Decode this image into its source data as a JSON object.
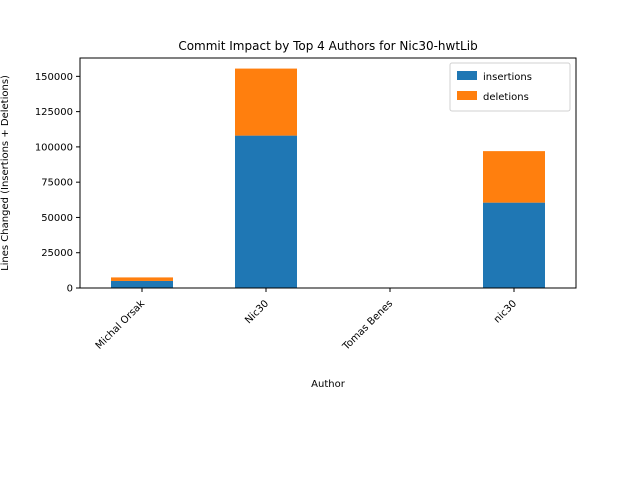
{
  "chart_data": {
    "type": "bar",
    "stacked": true,
    "title": "Commit Impact by Top 4 Authors for Nic30-hwtLib",
    "xlabel": "Author",
    "ylabel": "Lines Changed (Insertions + Deletions)",
    "categories": [
      "Michal Orsak",
      "Nic30",
      "Tomas Benes",
      "nic30"
    ],
    "series": [
      {
        "name": "insertions",
        "color": "#1f77b4",
        "values": [
          5000,
          108000,
          0,
          60500
        ]
      },
      {
        "name": "deletions",
        "color": "#ff7f0e",
        "values": [
          2500,
          47500,
          0,
          36500
        ]
      }
    ],
    "ylim": [
      0,
      163000
    ],
    "yticks": [
      0,
      25000,
      50000,
      75000,
      100000,
      125000,
      150000
    ],
    "ytick_labels": [
      "0",
      "25000",
      "50000",
      "75000",
      "100000",
      "125000",
      "150000"
    ],
    "legend_position": "top-right",
    "grid": false
  }
}
